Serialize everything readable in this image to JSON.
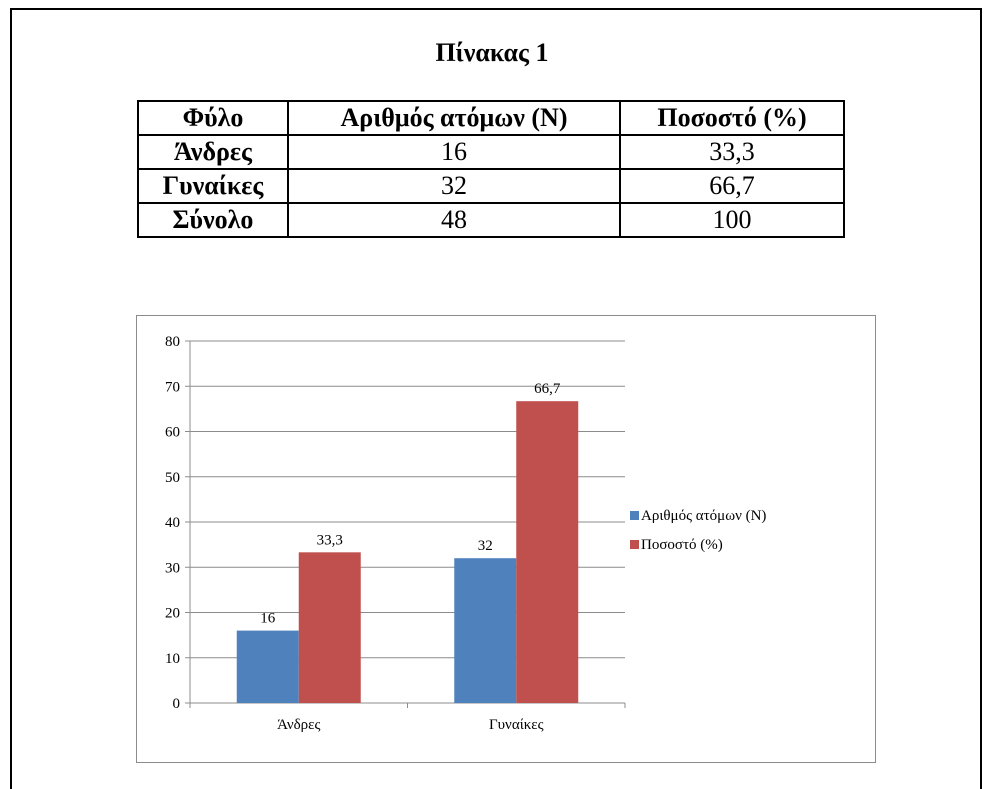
{
  "table": {
    "title": "Πίνακας 1",
    "headers": [
      "Φύλο",
      "Αριθμός ατόμων (N)",
      "Ποσοστό (%)"
    ],
    "rows": [
      [
        "Άνδρες",
        "16",
        "33,3"
      ],
      [
        "Γυναίκες",
        "32",
        "66,7"
      ],
      [
        "Σύνολο",
        "48",
        "100"
      ]
    ]
  },
  "chart_data": {
    "type": "bar",
    "categories": [
      "Άνδρες",
      "Γυναίκες"
    ],
    "series": [
      {
        "name": "Αριθμός ατόμων (N)",
        "values": [
          16,
          32
        ],
        "labels": [
          "16",
          "32"
        ],
        "color": "#4f81bd"
      },
      {
        "name": "Ποσοστό (%)",
        "values": [
          33.3,
          66.7
        ],
        "labels": [
          "33,3",
          "66,7"
        ],
        "color": "#c0504d"
      }
    ],
    "ylim": [
      0,
      80
    ],
    "yticks": [
      0,
      10,
      20,
      30,
      40,
      50,
      60,
      70,
      80
    ],
    "grid": true,
    "legend": "right",
    "title": "",
    "xlabel": "",
    "ylabel": ""
  }
}
